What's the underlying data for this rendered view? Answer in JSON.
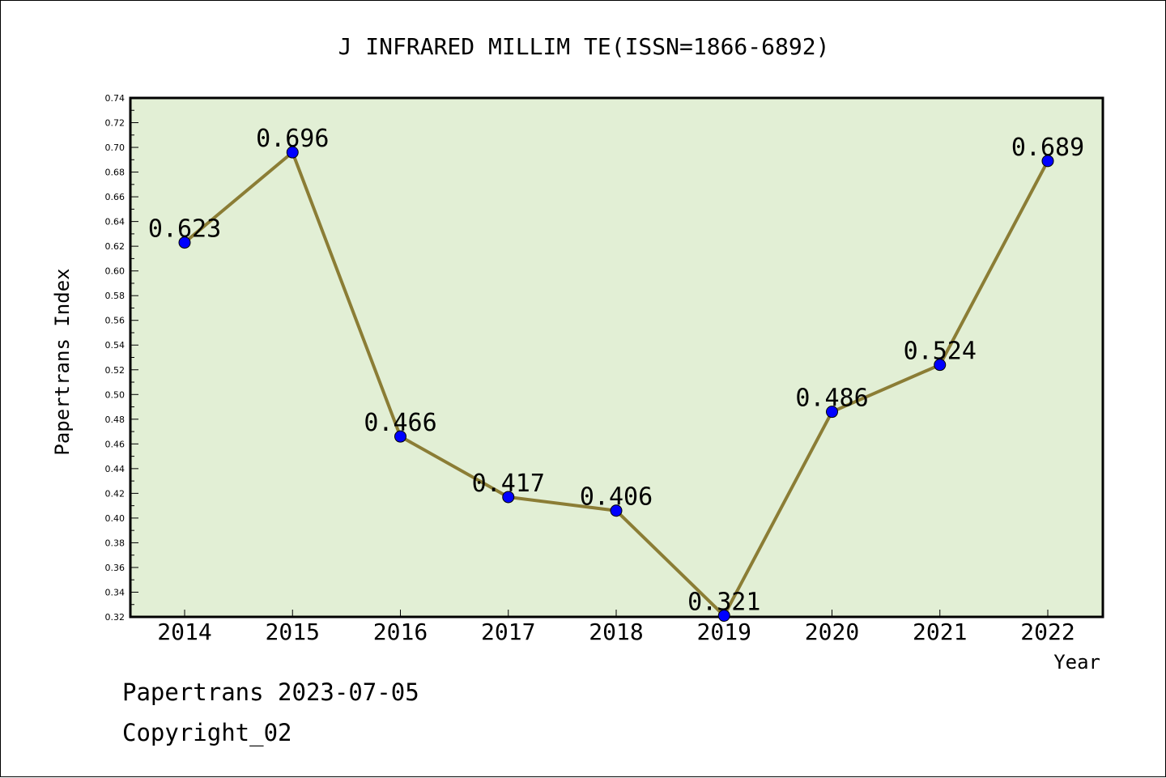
{
  "chart_data": {
    "type": "line",
    "title": "J INFRARED MILLIM TE(ISSN=1866-6892)",
    "xlabel": "Year",
    "ylabel": "Papertrans Index",
    "categories": [
      "2014",
      "2015",
      "2016",
      "2017",
      "2018",
      "2019",
      "2020",
      "2021",
      "2022"
    ],
    "series": [
      {
        "values": [
          0.623,
          0.696,
          0.466,
          0.417,
          0.406,
          0.321,
          0.486,
          0.524,
          0.689
        ],
        "labels": [
          "0.623",
          "0.696",
          "0.466",
          "0.417",
          "0.406",
          "0.321",
          "0.486",
          "0.524",
          "0.689"
        ]
      }
    ],
    "ylim": [
      0.32,
      0.74
    ],
    "yticks": [
      "0.32",
      "0.34",
      "0.36",
      "0.38",
      "0.40",
      "0.42",
      "0.44",
      "0.46",
      "0.48",
      "0.50",
      "0.52",
      "0.54",
      "0.56",
      "0.58",
      "0.60",
      "0.62",
      "0.64",
      "0.66",
      "0.68",
      "0.70",
      "0.72",
      "0.74"
    ],
    "grid": false,
    "legend": "none",
    "colors": {
      "plot_background": "#e2efd5",
      "line": "#8b7d35",
      "marker": "#0000ff"
    }
  },
  "footer": {
    "date_line": "Papertrans 2023-07-05",
    "copyright": "Copyright_02"
  }
}
